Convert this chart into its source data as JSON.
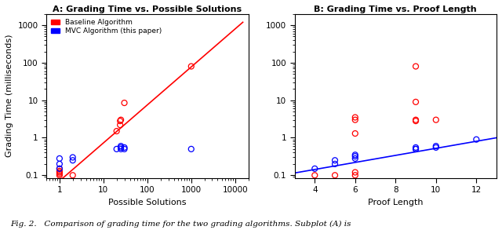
{
  "title_A": "A: Grading Time vs. Possible Solutions",
  "title_B": "B: Grading Time vs. Proof Length",
  "xlabel_A": "Possible Solutions",
  "xlabel_B": "Proof Length",
  "ylabel": "Grading Time (milliseconds)",
  "legend_labels": [
    "Baseline Algorithm",
    "MVC Algorithm (this paper)"
  ],
  "red_color": "#FF0000",
  "blue_color": "#0000FF",
  "plotA_red_x": [
    1,
    1,
    1,
    1,
    1,
    2,
    20,
    24,
    24,
    25,
    30,
    1000
  ],
  "plotA_red_y": [
    0.1,
    0.12,
    0.13,
    0.15,
    0.11,
    0.1,
    1.5,
    2.2,
    2.8,
    3.0,
    8.5,
    80
  ],
  "plotA_blue_x": [
    1,
    1,
    1,
    2,
    2,
    20,
    25,
    25,
    25,
    30,
    30,
    1000
  ],
  "plotA_blue_y": [
    0.15,
    0.2,
    0.28,
    0.25,
    0.3,
    0.5,
    0.5,
    0.55,
    0.6,
    0.55,
    0.5,
    0.5
  ],
  "plotA_red_line_x": [
    0.5,
    15000
  ],
  "plotA_red_line_y": [
    0.035,
    1200
  ],
  "plotB_red_x": [
    4,
    5,
    6,
    6,
    6,
    6,
    6,
    9,
    9,
    9,
    9,
    10
  ],
  "plotB_red_y": [
    0.1,
    0.1,
    0.1,
    0.12,
    1.3,
    3.0,
    3.5,
    3.0,
    2.8,
    9.0,
    80,
    3.0
  ],
  "plotB_blue_x": [
    4,
    5,
    5,
    6,
    6,
    6,
    9,
    9,
    9,
    10,
    10,
    12
  ],
  "plotB_blue_y": [
    0.15,
    0.2,
    0.25,
    0.28,
    0.32,
    0.35,
    0.5,
    0.5,
    0.55,
    0.55,
    0.6,
    0.9
  ],
  "plotB_blue_line_x": [
    3,
    13
  ],
  "plotB_blue_line_y": [
    0.115,
    1.0
  ],
  "ylim": [
    0.085,
    2000
  ],
  "xlim_A": [
    0.5,
    20000
  ],
  "xlim_B": [
    3,
    13
  ],
  "yticks": [
    0.1,
    1,
    10,
    100,
    1000
  ],
  "ytick_labels": [
    "0.1",
    "1",
    "10",
    "100",
    "1000"
  ],
  "xticks_A": [
    1,
    10,
    100,
    1000,
    10000
  ],
  "xtick_labels_A": [
    "1",
    "10",
    "100",
    "1000",
    "10000"
  ],
  "xticks_B": [
    4,
    6,
    8,
    10,
    12
  ],
  "xtick_labels_B": [
    "4",
    "6",
    "8",
    "10",
    "12"
  ],
  "caption": "Fig. 2.   Comparison of grading time for the two grading algorithms. Subplot (A) is",
  "background_color": "#ffffff",
  "marker_size": 5,
  "line_width": 1.2
}
